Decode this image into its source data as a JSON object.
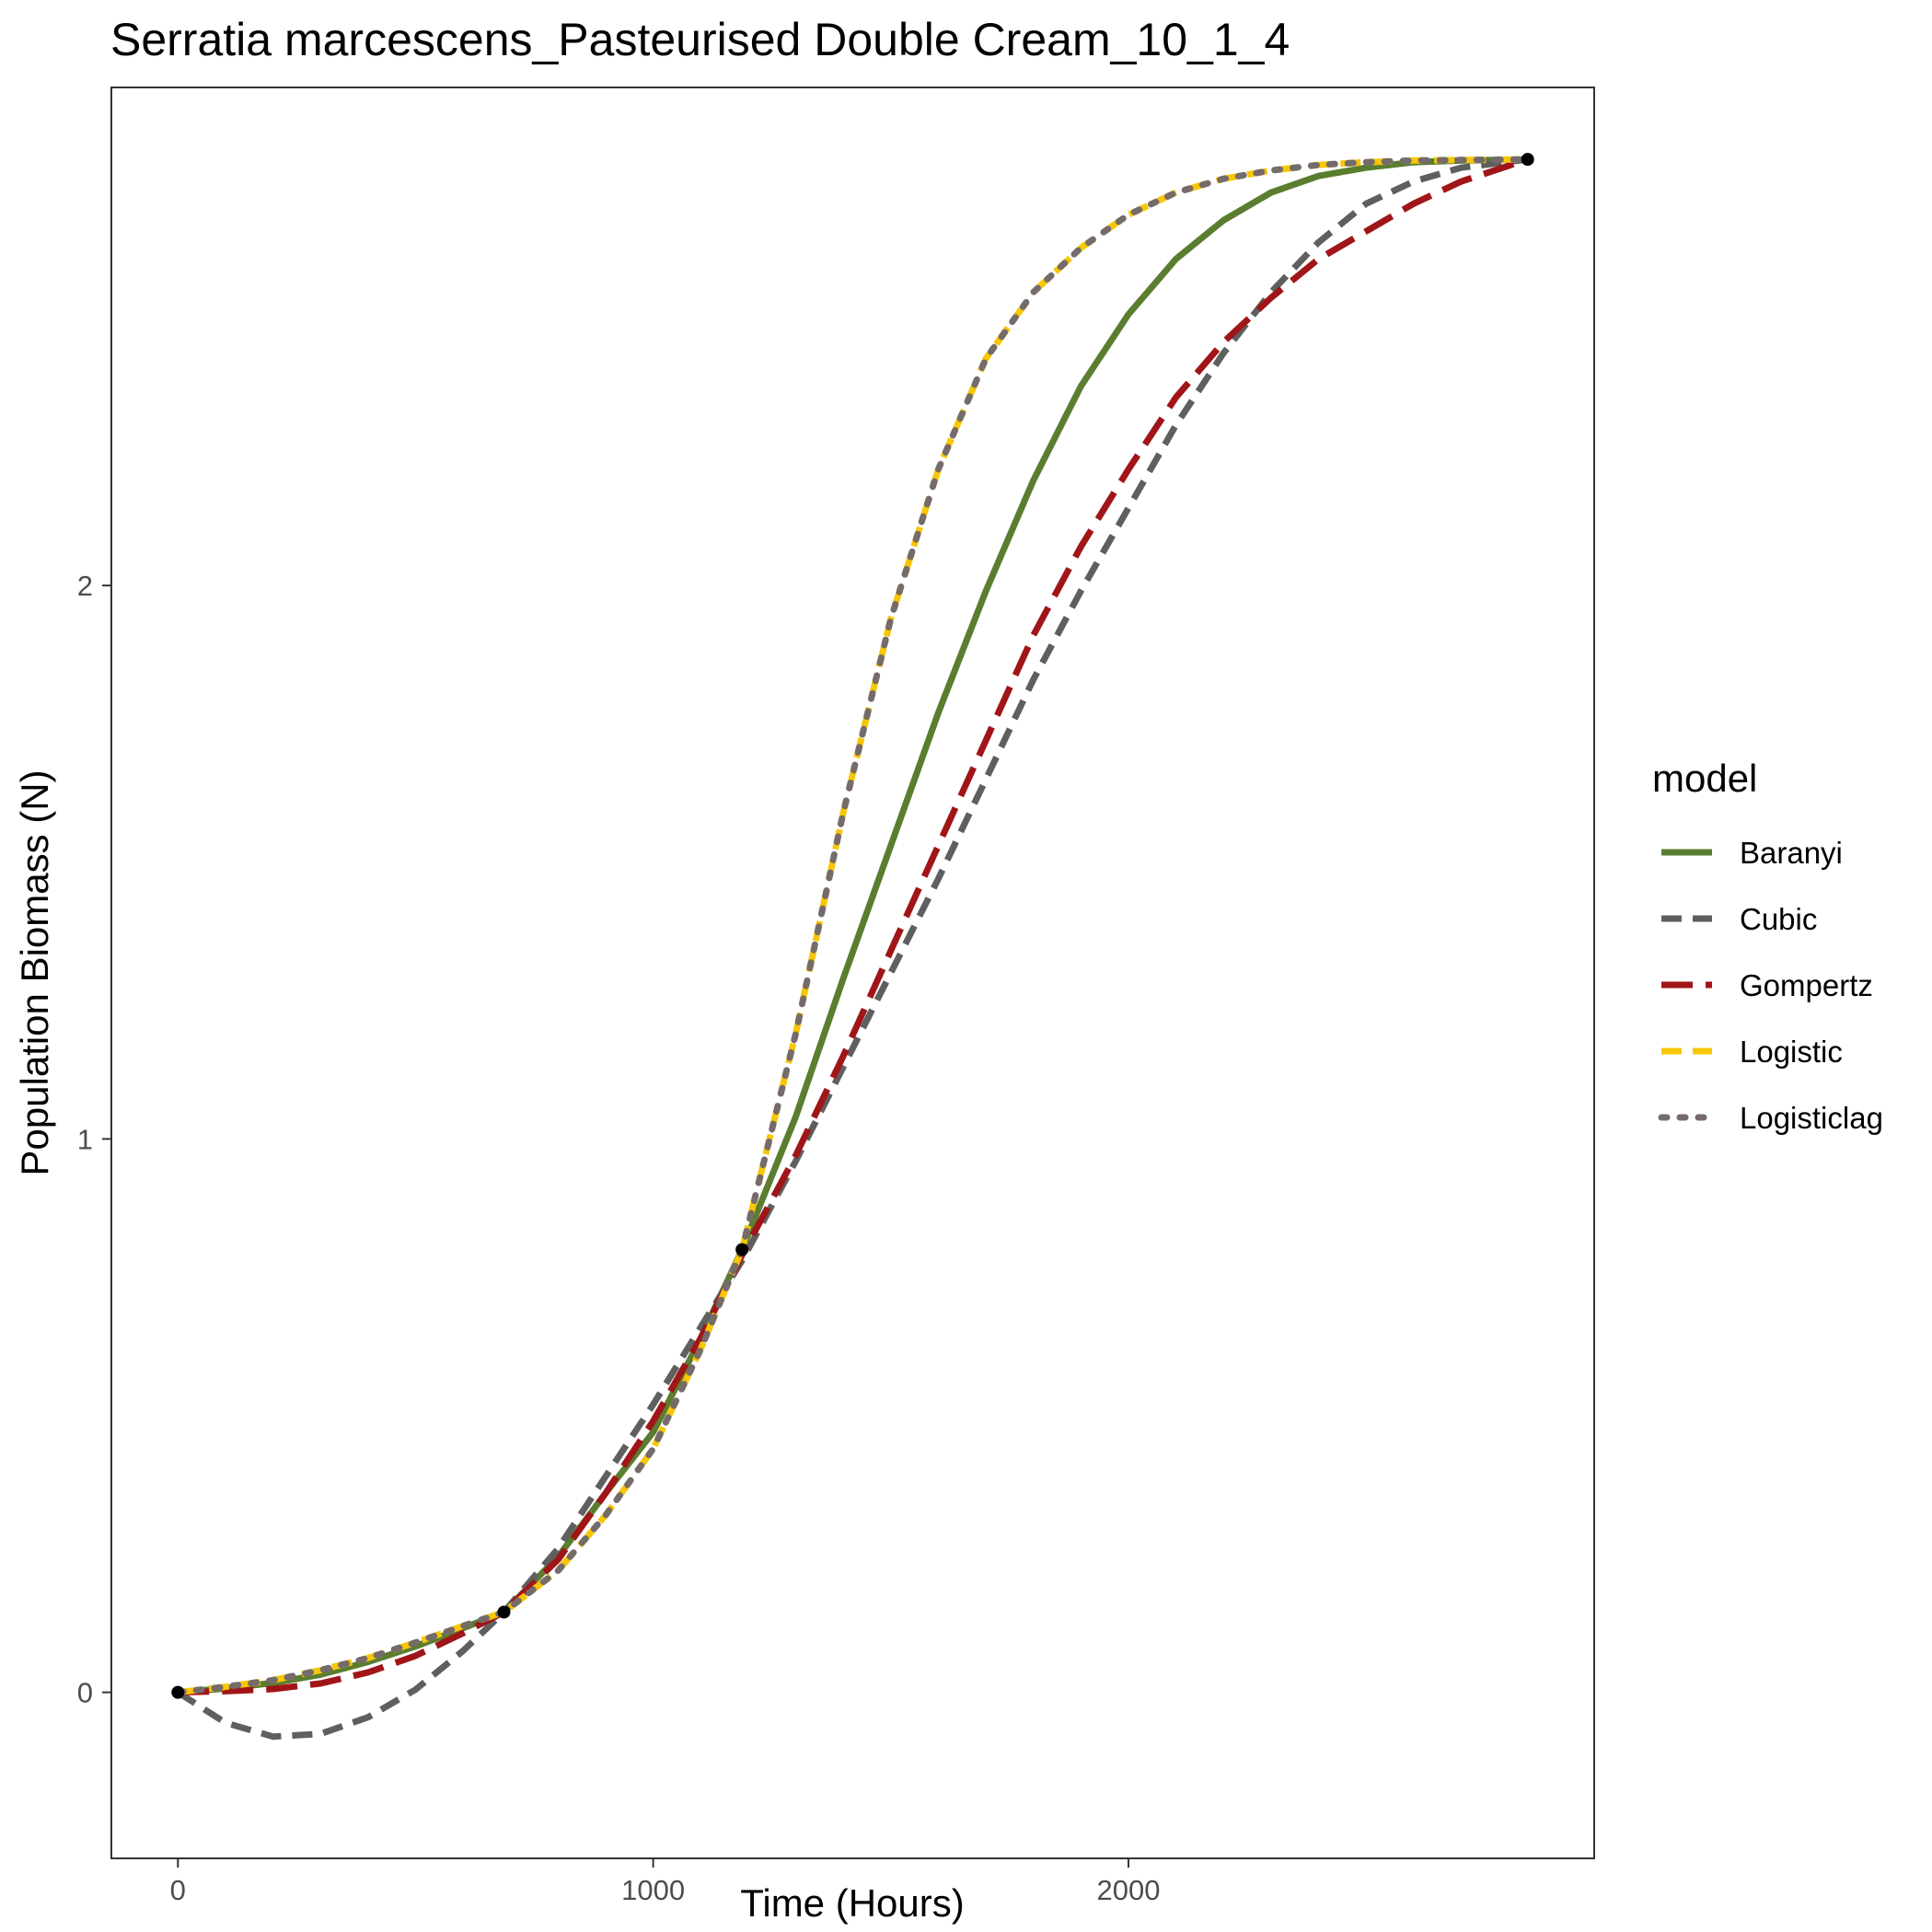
{
  "chart_data": {
    "type": "line",
    "title": "Serratia marcescens_Pasteurised Double Cream_10_1_4",
    "xlabel": "Time (Hours)",
    "ylabel": "Population Biomass (N)",
    "xlim": [
      -140,
      2980
    ],
    "ylim": [
      -0.3,
      2.9
    ],
    "x_ticks": [
      0,
      1000,
      2000
    ],
    "x_tick_labels": [
      "0",
      "1000",
      "2000"
    ],
    "y_ticks": [
      0,
      1,
      2
    ],
    "y_tick_labels": [
      "0",
      "1",
      "2"
    ],
    "grid": false,
    "legend": {
      "title": "model",
      "position": "right"
    },
    "points": {
      "x": [
        0,
        686,
        1187,
        2840
      ],
      "y": [
        0.0,
        0.145,
        0.8,
        2.77
      ]
    },
    "series": [
      {
        "name": "Baranyi",
        "color": "#5a7d2f",
        "dash": "solid",
        "x": [
          0,
          100,
          200,
          300,
          400,
          500,
          600,
          686,
          800,
          900,
          1000,
          1100,
          1187,
          1300,
          1400,
          1500,
          1600,
          1700,
          1800,
          1900,
          2000,
          2100,
          2200,
          2300,
          2400,
          2500,
          2600,
          2700,
          2840
        ],
        "y": [
          0.0,
          0.007,
          0.017,
          0.032,
          0.055,
          0.083,
          0.116,
          0.145,
          0.245,
          0.36,
          0.47,
          0.64,
          0.8,
          1.04,
          1.29,
          1.53,
          1.77,
          1.99,
          2.19,
          2.36,
          2.49,
          2.59,
          2.66,
          2.71,
          2.74,
          2.755,
          2.765,
          2.768,
          2.77
        ]
      },
      {
        "name": "Cubic",
        "color": "#5f5f5f",
        "dash": "dashed",
        "x": [
          0,
          100,
          200,
          300,
          400,
          500,
          600,
          686,
          800,
          900,
          1000,
          1100,
          1187,
          1300,
          1400,
          1500,
          1600,
          1700,
          1800,
          1900,
          2000,
          2100,
          2200,
          2300,
          2400,
          2500,
          2600,
          2700,
          2840
        ],
        "y": [
          0.0,
          -0.055,
          -0.08,
          -0.075,
          -0.045,
          0.005,
          0.075,
          0.145,
          0.26,
          0.39,
          0.52,
          0.66,
          0.78,
          0.96,
          1.13,
          1.3,
          1.47,
          1.65,
          1.83,
          1.99,
          2.14,
          2.29,
          2.42,
          2.53,
          2.62,
          2.69,
          2.73,
          2.755,
          2.77
        ]
      },
      {
        "name": "Gompertz",
        "color": "#a01518",
        "dash": "longdash",
        "x": [
          0,
          100,
          200,
          300,
          400,
          500,
          600,
          686,
          800,
          900,
          1000,
          1100,
          1187,
          1300,
          1400,
          1500,
          1600,
          1700,
          1800,
          1900,
          2000,
          2100,
          2200,
          2300,
          2400,
          2500,
          2600,
          2700,
          2840
        ],
        "y": [
          0.0,
          0.002,
          0.006,
          0.016,
          0.036,
          0.066,
          0.107,
          0.145,
          0.24,
          0.36,
          0.49,
          0.64,
          0.79,
          0.97,
          1.15,
          1.34,
          1.53,
          1.72,
          1.91,
          2.07,
          2.21,
          2.34,
          2.44,
          2.52,
          2.59,
          2.64,
          2.69,
          2.73,
          2.77
        ]
      },
      {
        "name": "Logistic",
        "color": "#f7c708",
        "dash": "dashed",
        "x": [
          0,
          100,
          200,
          300,
          400,
          500,
          600,
          686,
          800,
          900,
          1000,
          1100,
          1187,
          1300,
          1400,
          1500,
          1600,
          1700,
          1800,
          1900,
          2000,
          2100,
          2200,
          2300,
          2400,
          2500,
          2600,
          2700,
          2840
        ],
        "y": [
          0.0,
          0.01,
          0.022,
          0.04,
          0.062,
          0.09,
          0.12,
          0.145,
          0.22,
          0.32,
          0.44,
          0.62,
          0.8,
          1.19,
          1.59,
          1.94,
          2.21,
          2.41,
          2.53,
          2.61,
          2.67,
          2.71,
          2.735,
          2.75,
          2.76,
          2.765,
          2.768,
          2.769,
          2.77
        ]
      },
      {
        "name": "Logisticlag",
        "color": "#756b6b",
        "dash": "dotted",
        "x": [
          0,
          100,
          200,
          300,
          400,
          500,
          600,
          686,
          800,
          900,
          1000,
          1100,
          1187,
          1300,
          1400,
          1500,
          1600,
          1700,
          1800,
          1900,
          2000,
          2100,
          2200,
          2300,
          2400,
          2500,
          2600,
          2700,
          2840
        ],
        "y": [
          0.0,
          0.01,
          0.022,
          0.04,
          0.062,
          0.09,
          0.12,
          0.145,
          0.22,
          0.32,
          0.44,
          0.62,
          0.8,
          1.19,
          1.59,
          1.94,
          2.21,
          2.41,
          2.53,
          2.61,
          2.67,
          2.71,
          2.735,
          2.75,
          2.76,
          2.765,
          2.768,
          2.769,
          2.77
        ]
      }
    ]
  }
}
